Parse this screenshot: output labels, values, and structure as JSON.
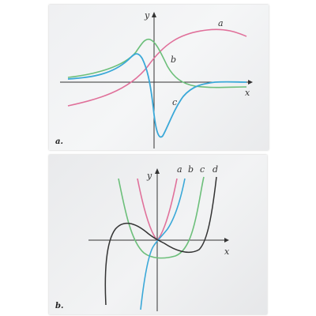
{
  "panels": [
    {
      "panel_label": "a.",
      "axis_x_label": "x",
      "axis_y_label": "y",
      "curve_labels": [
        "a",
        "b",
        "c"
      ],
      "colors": {
        "a": "#e0709a",
        "b": "#6cbf7a",
        "c": "#3aa8d8",
        "axis": "#333333"
      }
    },
    {
      "panel_label": "b.",
      "axis_x_label": "x",
      "axis_y_label": "y",
      "curve_labels": [
        "a",
        "b",
        "c",
        "d"
      ],
      "colors": {
        "a": "#e0709a",
        "b": "#3aa8d8",
        "c": "#6cbf7a",
        "d": "#333333",
        "axis": "#333333"
      }
    }
  ]
}
